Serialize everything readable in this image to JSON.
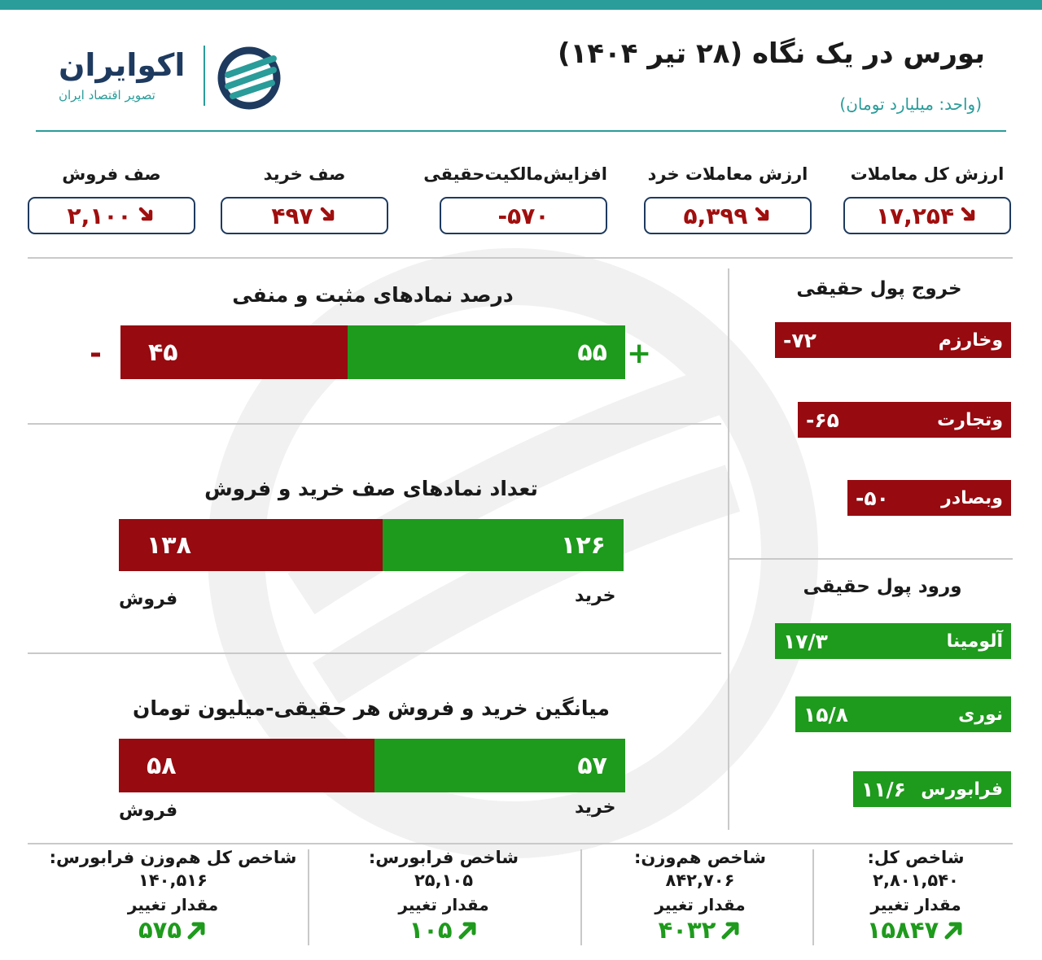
{
  "header": {
    "title": "بورس در یک نگاه (۲۸ تیر ۱۴۰۴)",
    "unit": "(واحد: میلیارد تومان)",
    "logo_name": "اکوایران",
    "logo_tagline": "تصویر اقتصاد ایران"
  },
  "kpis": [
    {
      "label": "ارزش کل معاملات",
      "value": "۱۷,۲۵۴",
      "trend": "down"
    },
    {
      "label": "ارزش معاملات خرد",
      "value": "۵,۳۹۹",
      "trend": "down"
    },
    {
      "label": "افزایش‌مالکیت‌حقیقی",
      "value": "-۵۷۰",
      "trend": "none"
    },
    {
      "label": "صف خرید",
      "value": "۴۹۷",
      "trend": "down"
    },
    {
      "label": "صف فروش",
      "value": "۲,۱۰۰",
      "trend": "down"
    }
  ],
  "sections": {
    "pct": {
      "title": "درصد نمادهای مثبت و منفی",
      "plus": "+",
      "minus": "-"
    },
    "queue": {
      "title": "تعداد نمادهای صف خرید و فروش",
      "buy_label": "خرید",
      "sell_label": "فروش"
    },
    "avg": {
      "title": "میانگین خرید و فروش هر حقیقی-میلیون تومان",
      "buy_label": "خرید",
      "sell_label": "فروش"
    }
  },
  "outflow": {
    "title": "خروج پول حقیقی",
    "items": [
      {
        "name": "وخارزم",
        "value": "-۷۲"
      },
      {
        "name": "وتجارت",
        "value": "-۶۵"
      },
      {
        "name": "وبصادر",
        "value": "-۵۰"
      }
    ]
  },
  "inflow": {
    "title": "ورود پول حقیقی",
    "items": [
      {
        "name": "آلومینا",
        "value": "۱۷/۳"
      },
      {
        "name": "نوری",
        "value": "۱۵/۸"
      },
      {
        "name": "فرابورس",
        "value": "۱۱/۶"
      }
    ]
  },
  "indices": [
    {
      "name": "شاخص کل:",
      "value": "۲,۸۰۱,۵۴۰",
      "change_label": "مقدار تغییر",
      "change": "۱۵۸۴۷"
    },
    {
      "name": "شاخص هم‌وزن:",
      "value": "۸۴۲,۷۰۶",
      "change_label": "مقدار تغییر",
      "change": "۴۰۳۲"
    },
    {
      "name": "شاخص فرابورس:",
      "value": "۲۵,۱۰۵",
      "change_label": "مقدار تغییر",
      "change": "۱۰۵"
    },
    {
      "name": "شاخص کل هم‌وزن فرابورس:",
      "value": "۱۴۰,۵۱۶",
      "change_label": "مقدار تغییر",
      "change": "۵۷۵"
    }
  ],
  "colors": {
    "positive": "#1e9a1c",
    "negative": "#960a10",
    "accent": "#2a9c9a",
    "navy": "#1e3a5f"
  },
  "chart_data": [
    {
      "type": "bar",
      "title": "درصد نمادهای مثبت و منفی",
      "categories": [
        "+",
        "-"
      ],
      "values": [
        55,
        45
      ],
      "value_labels": [
        "۵۵",
        "۴۵"
      ]
    },
    {
      "type": "bar",
      "title": "تعداد نمادهای صف خرید و فروش",
      "categories": [
        "خرید",
        "فروش"
      ],
      "values": [
        126,
        138
      ],
      "value_labels": [
        "۱۲۶",
        "۱۳۸"
      ]
    },
    {
      "type": "bar",
      "title": "میانگین خرید و فروش هر حقیقی-میلیون تومان",
      "categories": [
        "خرید",
        "فروش"
      ],
      "values": [
        57,
        58
      ],
      "value_labels": [
        "۵۷",
        "۵۸"
      ]
    },
    {
      "type": "bar",
      "title": "خروج پول حقیقی",
      "categories": [
        "وخارزم",
        "وتجارت",
        "وبصادر"
      ],
      "values": [
        -72,
        -65,
        -50
      ]
    },
    {
      "type": "bar",
      "title": "ورود پول حقیقی",
      "categories": [
        "آلومینا",
        "نوری",
        "فرابورس"
      ],
      "values": [
        17.3,
        15.8,
        11.6
      ]
    }
  ]
}
